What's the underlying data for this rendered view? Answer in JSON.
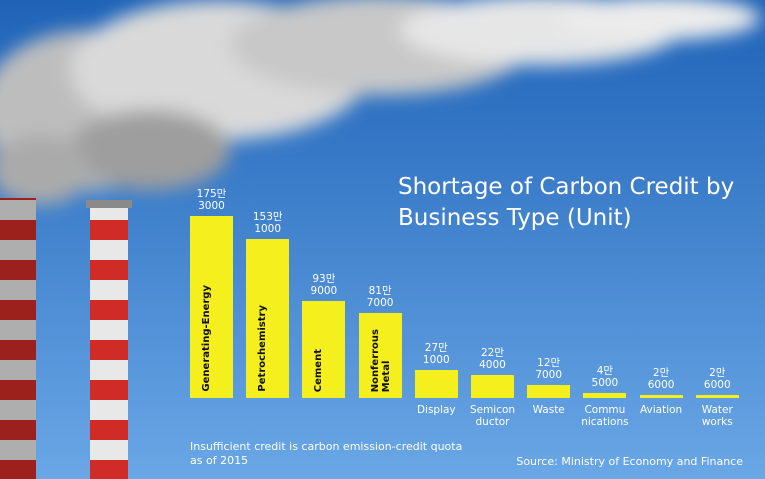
{
  "chart_data": {
    "type": "bar",
    "title": "Shortage of Carbon Credit by\nBusiness Type (Unit)",
    "categories": [
      "Generating-Energy",
      "Petrochemistry",
      "Cement",
      "Nonferrous\nMetal",
      "Display",
      "Semicon\nductor",
      "Waste",
      "Commu\nnications",
      "Aviation",
      "Water\nworks"
    ],
    "values": [
      1753000,
      1531000,
      939000,
      817000,
      271000,
      224000,
      127000,
      45000,
      26000,
      26000
    ],
    "value_labels": [
      "175만\n3000",
      "153만\n1000",
      "93만\n9000",
      "81만\n7000",
      "27만\n1000",
      "22만\n4000",
      "12만\n7000",
      "4만\n5000",
      "2만\n6000",
      "2만\n6000"
    ],
    "color": "#f5ef1e",
    "note": "Insufficient credit is carbon emission-credit quota\nas of 2015",
    "source": "Source: Ministry of Economy and Finance"
  }
}
